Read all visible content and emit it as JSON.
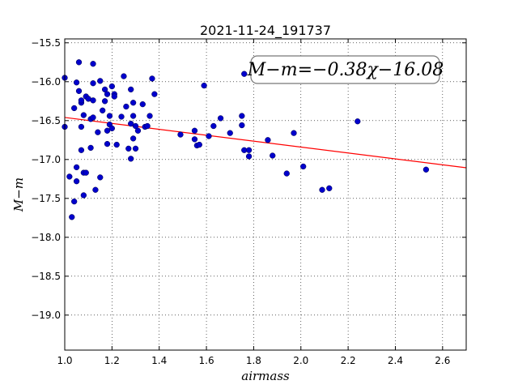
{
  "chart_data": {
    "type": "scatter",
    "title": "2021-11-24_191737",
    "xlabel": "airmass",
    "ylabel": "M−m",
    "xlim": [
      1.0,
      2.7
    ],
    "ylim": [
      -19.45,
      -15.45
    ],
    "x_ticks": [
      1.0,
      1.2,
      1.4,
      1.6,
      1.8,
      2.0,
      2.2,
      2.4,
      2.6
    ],
    "x_tick_labels": [
      "1.0",
      "1.2",
      "1.4",
      "1.6",
      "1.8",
      "2.0",
      "2.2",
      "2.4",
      "2.6"
    ],
    "y_ticks": [
      -15.5,
      -16.0,
      -16.5,
      -17.0,
      -17.5,
      -18.0,
      -18.5,
      -19.0
    ],
    "y_tick_labels": [
      "−15.5",
      "−16.0",
      "−16.5",
      "−17.0",
      "−17.5",
      "−18.0",
      "−18.5",
      "−19.0"
    ],
    "grid": true,
    "annotation": "M−m=−0.38χ−16.08",
    "fit": {
      "slope": -0.38,
      "intercept": -16.08,
      "color": "#ff0000"
    },
    "marker_color": "#0000cc",
    "points": [
      [
        1.0,
        -15.95
      ],
      [
        1.0,
        -16.58
      ],
      [
        1.02,
        -17.22
      ],
      [
        1.03,
        -17.74
      ],
      [
        1.04,
        -17.54
      ],
      [
        1.04,
        -16.34
      ],
      [
        1.05,
        -17.1
      ],
      [
        1.05,
        -17.28
      ],
      [
        1.05,
        -16.01
      ],
      [
        1.06,
        -15.75
      ],
      [
        1.06,
        -16.12
      ],
      [
        1.07,
        -16.27
      ],
      [
        1.07,
        -16.24
      ],
      [
        1.07,
        -16.58
      ],
      [
        1.07,
        -16.88
      ],
      [
        1.08,
        -16.43
      ],
      [
        1.08,
        -17.17
      ],
      [
        1.08,
        -17.46
      ],
      [
        1.09,
        -17.17
      ],
      [
        1.09,
        -16.19
      ],
      [
        1.1,
        -16.22
      ],
      [
        1.11,
        -16.85
      ],
      [
        1.11,
        -16.48
      ],
      [
        1.12,
        -15.77
      ],
      [
        1.12,
        -16.02
      ],
      [
        1.12,
        -16.24
      ],
      [
        1.12,
        -16.46
      ],
      [
        1.13,
        -17.39
      ],
      [
        1.14,
        -16.65
      ],
      [
        1.15,
        -17.23
      ],
      [
        1.15,
        -15.99
      ],
      [
        1.16,
        -16.37
      ],
      [
        1.17,
        -16.1
      ],
      [
        1.17,
        -16.25
      ],
      [
        1.18,
        -16.63
      ],
      [
        1.18,
        -16.16
      ],
      [
        1.18,
        -16.8
      ],
      [
        1.19,
        -16.55
      ],
      [
        1.19,
        -16.44
      ],
      [
        1.2,
        -16.6
      ],
      [
        1.2,
        -16.06
      ],
      [
        1.21,
        -16.16
      ],
      [
        1.21,
        -16.19
      ],
      [
        1.22,
        -16.81
      ],
      [
        1.24,
        -16.45
      ],
      [
        1.25,
        -15.93
      ],
      [
        1.26,
        -16.32
      ],
      [
        1.27,
        -16.86
      ],
      [
        1.28,
        -16.1
      ],
      [
        1.28,
        -16.54
      ],
      [
        1.28,
        -16.99
      ],
      [
        1.29,
        -16.73
      ],
      [
        1.29,
        -16.27
      ],
      [
        1.29,
        -16.44
      ],
      [
        1.3,
        -16.57
      ],
      [
        1.3,
        -16.86
      ],
      [
        1.31,
        -16.63
      ],
      [
        1.33,
        -16.29
      ],
      [
        1.34,
        -16.58
      ],
      [
        1.35,
        -16.57
      ],
      [
        1.36,
        -16.44
      ],
      [
        1.37,
        -15.96
      ],
      [
        1.38,
        -16.16
      ],
      [
        1.49,
        -16.68
      ],
      [
        1.55,
        -16.63
      ],
      [
        1.55,
        -16.74
      ],
      [
        1.56,
        -16.82
      ],
      [
        1.57,
        -16.81
      ],
      [
        1.59,
        -16.05
      ],
      [
        1.61,
        -16.7
      ],
      [
        1.63,
        -16.57
      ],
      [
        1.66,
        -16.47
      ],
      [
        1.7,
        -16.66
      ],
      [
        1.75,
        -16.44
      ],
      [
        1.75,
        -16.56
      ],
      [
        1.76,
        -16.88
      ],
      [
        1.76,
        -15.9
      ],
      [
        1.78,
        -16.88
      ],
      [
        1.78,
        -16.96
      ],
      [
        1.86,
        -16.75
      ],
      [
        1.88,
        -16.95
      ],
      [
        1.94,
        -17.18
      ],
      [
        1.97,
        -16.66
      ],
      [
        2.01,
        -17.09
      ],
      [
        2.09,
        -17.39
      ],
      [
        2.12,
        -17.37
      ],
      [
        2.24,
        -16.51
      ],
      [
        2.53,
        -17.13
      ]
    ]
  }
}
